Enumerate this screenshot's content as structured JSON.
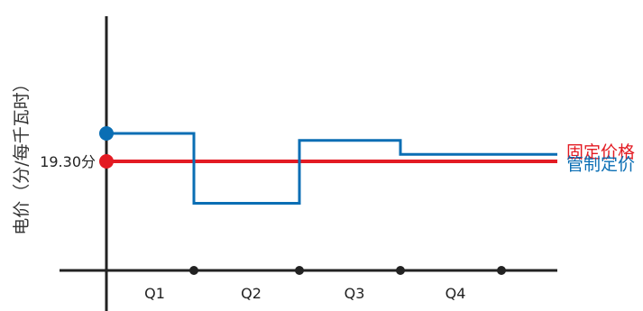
{
  "chart_data": {
    "type": "line",
    "title": "",
    "xlabel": "",
    "ylabel": "电价（分/每千瓦时）",
    "categories": [
      "Q1",
      "Q2",
      "Q3",
      "Q4"
    ],
    "y_annotation": "19.30分",
    "series": [
      {
        "name": "固定价格",
        "color": "#e31b23",
        "values": [
          19.3,
          19.3,
          19.3,
          19.3
        ],
        "end_value": 19.3
      },
      {
        "name": "管制定价",
        "color": "#0a6eb4",
        "values": [
          20.1,
          18.1,
          19.9,
          19.5
        ],
        "start_value": 20.1,
        "end_value": 19.5
      }
    ],
    "grid": false
  }
}
